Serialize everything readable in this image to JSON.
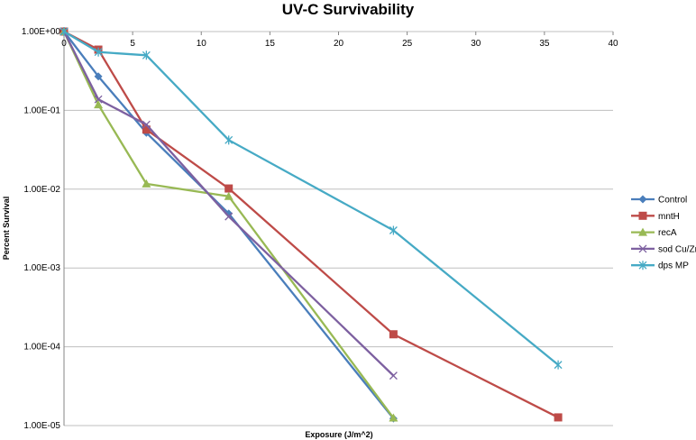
{
  "chart_data": {
    "type": "line",
    "title": "UV-C Survivability",
    "xlabel": "Exposure (J/m^2)",
    "ylabel": "Percent Survival",
    "xlim": [
      0,
      40
    ],
    "ylim": [
      1e-05,
      1
    ],
    "yscale": "log",
    "x_ticks": [
      "0",
      "5",
      "10",
      "15",
      "20",
      "25",
      "30",
      "35",
      "40"
    ],
    "y_ticks": [
      "1.00E+00",
      "1.00E-01",
      "1.00E-02",
      "1.00E-03",
      "1.00E-04",
      "1.00E-05"
    ],
    "grid": "horizontal",
    "legend_position": "right",
    "series": [
      {
        "name": "Control",
        "color": "#4a7ebb",
        "marker": "diamond",
        "x": [
          0,
          2.5,
          6,
          12,
          24
        ],
        "y": [
          1,
          0.27,
          0.052,
          0.0049,
          1.23e-05
        ]
      },
      {
        "name": "mntH",
        "color": "#be4b48",
        "marker": "square",
        "x": [
          0,
          2.5,
          6,
          12,
          24,
          36
        ],
        "y": [
          1,
          0.59,
          0.057,
          0.0102,
          0.000144,
          1.27e-05
        ]
      },
      {
        "name": "recA",
        "color": "#98b954",
        "marker": "triangle",
        "x": [
          0,
          2.5,
          6,
          12,
          24
        ],
        "y": [
          1,
          0.118,
          0.0117,
          0.0081,
          1.25e-05
        ]
      },
      {
        "name": "sod Cu/Zn",
        "color": "#7d60a0",
        "marker": "x",
        "x": [
          0,
          2.5,
          6,
          12,
          24
        ],
        "y": [
          1,
          0.138,
          0.066,
          0.0045,
          4.3e-05
        ]
      },
      {
        "name": "dps MP",
        "color": "#46aac5",
        "marker": "star",
        "x": [
          0,
          2.5,
          6,
          12,
          24,
          36
        ],
        "y": [
          1,
          0.55,
          0.5,
          0.042,
          0.003,
          5.9e-05
        ]
      }
    ]
  }
}
